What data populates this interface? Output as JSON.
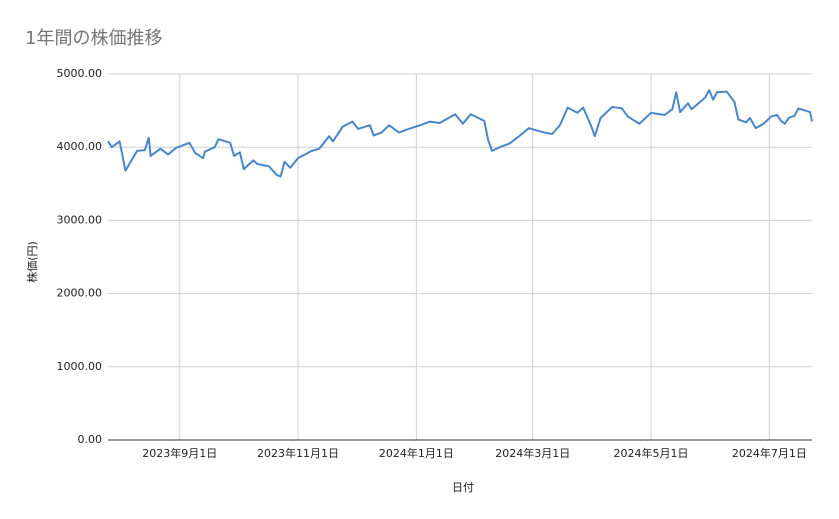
{
  "chart_data": {
    "type": "line",
    "title": "1年間の株価推移",
    "xlabel": "日付",
    "ylabel": "株価(円)",
    "x": [
      "2023-07-26",
      "2023-07-28",
      "2023-08-01",
      "2023-08-04",
      "2023-08-08",
      "2023-08-10",
      "2023-08-14",
      "2023-08-16",
      "2023-08-17",
      "2023-08-22",
      "2023-08-26",
      "2023-08-30",
      "2023-09-06",
      "2023-09-09",
      "2023-09-13",
      "2023-09-14",
      "2023-09-19",
      "2023-09-21",
      "2023-09-27",
      "2023-09-29",
      "2023-10-02",
      "2023-10-04",
      "2023-10-09",
      "2023-10-11",
      "2023-10-17",
      "2023-10-21",
      "2023-10-23",
      "2023-10-25",
      "2023-10-28",
      "2023-11-01",
      "2023-11-08",
      "2023-11-12",
      "2023-11-17",
      "2023-11-19",
      "2023-11-24",
      "2023-11-29",
      "2023-12-02",
      "2023-12-08",
      "2023-12-10",
      "2023-12-14",
      "2023-12-18",
      "2023-12-23",
      "2023-12-28",
      "2024-01-03",
      "2024-01-08",
      "2024-01-13",
      "2024-01-21",
      "2024-01-25",
      "2024-01-29",
      "2024-02-05",
      "2024-02-07",
      "2024-02-09",
      "2024-02-13",
      "2024-02-18",
      "2024-02-23",
      "2024-02-28",
      "2024-03-07",
      "2024-03-11",
      "2024-03-15",
      "2024-03-19",
      "2024-03-24",
      "2024-03-27",
      "2024-03-31",
      "2024-04-02",
      "2024-04-05",
      "2024-04-11",
      "2024-04-16",
      "2024-04-19",
      "2024-04-25",
      "2024-05-01",
      "2024-05-08",
      "2024-05-12",
      "2024-05-14",
      "2024-05-16",
      "2024-05-20",
      "2024-05-22",
      "2024-05-29",
      "2024-05-31",
      "2024-06-02",
      "2024-06-04",
      "2024-06-09",
      "2024-06-13",
      "2024-06-15",
      "2024-06-19",
      "2024-06-21",
      "2024-06-24",
      "2024-06-28",
      "2024-07-02",
      "2024-07-05",
      "2024-07-07",
      "2024-07-09",
      "2024-07-11",
      "2024-07-14",
      "2024-07-16",
      "2024-07-22",
      "2024-07-23"
    ],
    "series": [
      {
        "name": "株価",
        "color": "#4a86c8",
        "values": [
          4080,
          4000,
          4080,
          3680,
          3860,
          3950,
          3960,
          4130,
          3880,
          3980,
          3900,
          3990,
          4060,
          3920,
          3850,
          3940,
          4000,
          4110,
          4060,
          3880,
          3930,
          3700,
          3820,
          3770,
          3740,
          3620,
          3600,
          3800,
          3720,
          3850,
          3950,
          3980,
          4150,
          4080,
          4280,
          4350,
          4250,
          4300,
          4160,
          4200,
          4300,
          4200,
          4250,
          4300,
          4350,
          4330,
          4450,
          4320,
          4450,
          4360,
          4100,
          3950,
          4000,
          4050,
          4150,
          4260,
          4200,
          4180,
          4300,
          4540,
          4470,
          4540,
          4300,
          4150,
          4400,
          4550,
          4530,
          4420,
          4320,
          4470,
          4440,
          4520,
          4750,
          4480,
          4600,
          4520,
          4680,
          4780,
          4650,
          4750,
          4760,
          4620,
          4380,
          4340,
          4400,
          4260,
          4320,
          4420,
          4440,
          4360,
          4320,
          4400,
          4430,
          4530,
          4480,
          4350
        ]
      }
    ],
    "xlim": [
      "2023-07-26",
      "2024-07-23"
    ],
    "xticks": [
      {
        "value": "2023-09-01",
        "label": "2023年9月1日"
      },
      {
        "value": "2023-11-01",
        "label": "2023年11月1日"
      },
      {
        "value": "2024-01-01",
        "label": "2024年1月1日"
      },
      {
        "value": "2024-03-01",
        "label": "2024年3月1日"
      },
      {
        "value": "2024-05-01",
        "label": "2024年5月1日"
      },
      {
        "value": "2024-07-01",
        "label": "2024年7月1日"
      }
    ],
    "ylim": [
      0,
      5000
    ],
    "yticks": [
      {
        "value": 0,
        "label": "0.00"
      },
      {
        "value": 1000,
        "label": "1000.00"
      },
      {
        "value": 2000,
        "label": "2000.00"
      },
      {
        "value": 3000,
        "label": "3000.00"
      },
      {
        "value": 4000,
        "label": "4000.00"
      },
      {
        "value": 5000,
        "label": "5000.00"
      }
    ],
    "grid": true
  }
}
